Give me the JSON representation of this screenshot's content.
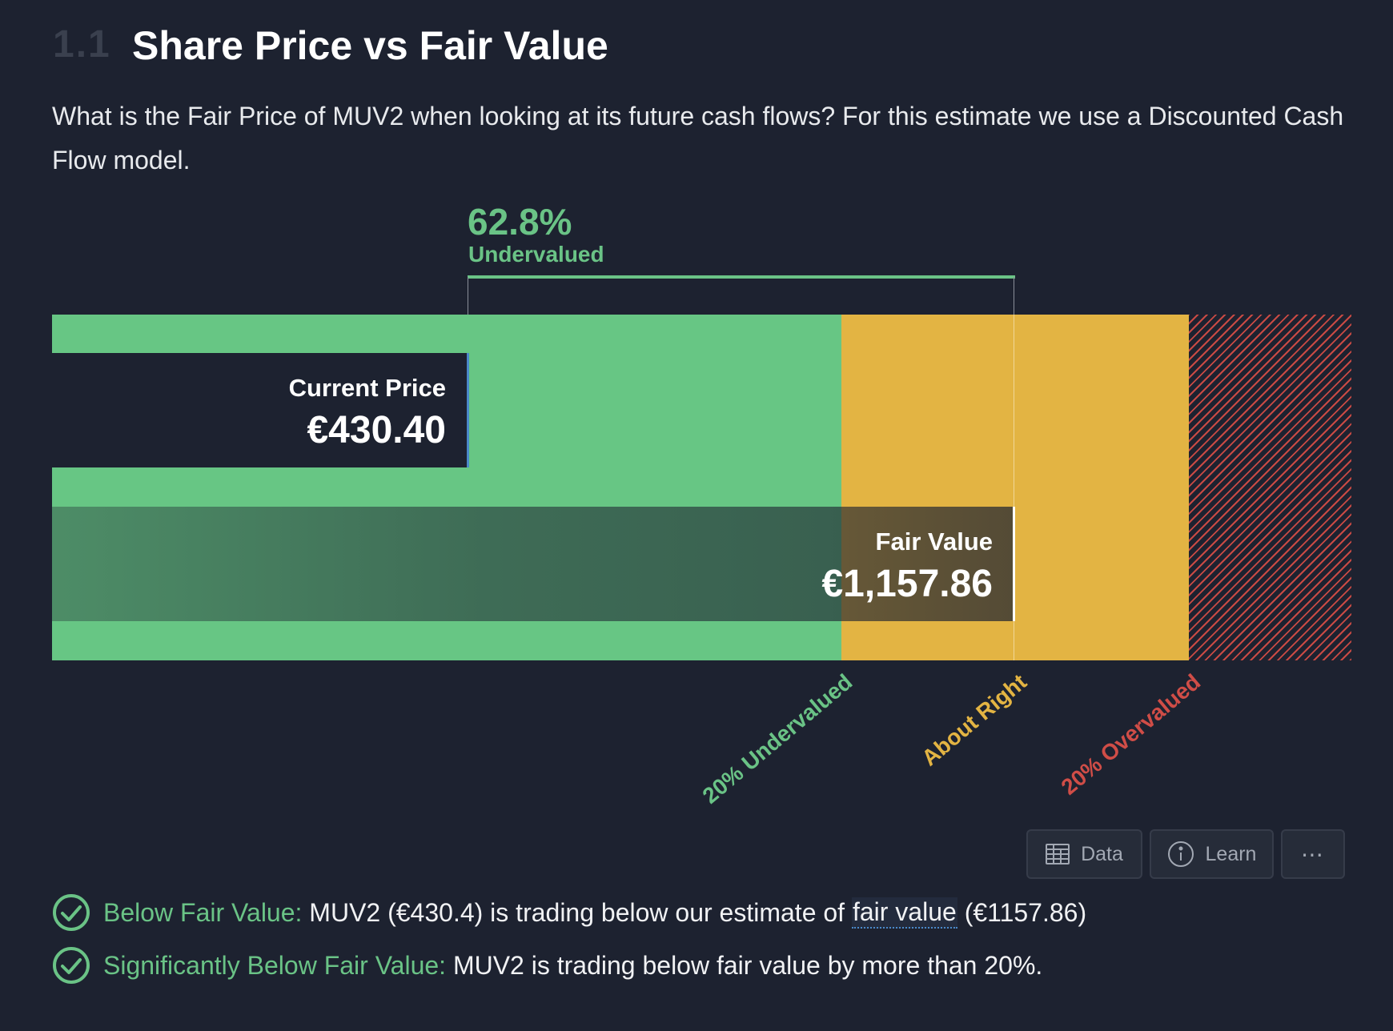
{
  "section": {
    "number": "1.1",
    "title": "Share Price vs Fair Value",
    "description": "What is the Fair Price of MUV2 when looking at its future cash flows? For this estimate we use a Discounted Cash Flow model."
  },
  "valuation": {
    "percent": "62.8%",
    "percent_label": "Undervalued",
    "current_price_label": "Current Price",
    "current_price_value": "€430.40",
    "fair_value_label": "Fair Value",
    "fair_value_value": "€1,157.86"
  },
  "chart_data": {
    "type": "bar",
    "current_price": 430.4,
    "fair_value": 1157.86,
    "undervalued_pct": 62.8,
    "zones": [
      {
        "label": "20% Undervalued",
        "color": "#67c684"
      },
      {
        "label": "About Right",
        "color": "#e3b443"
      },
      {
        "label": "20% Overvalued",
        "color": "#c94a44"
      }
    ]
  },
  "toolbar": {
    "data_label": "Data",
    "learn_label": "Learn",
    "more_label": "⋯"
  },
  "checks": [
    {
      "title": "Below Fair Value:",
      "text_before": " MUV2 (€430.4) is trading below our estimate of ",
      "link": "fair value",
      "text_after": " (€1157.86)"
    },
    {
      "title": "Significantly Below Fair Value:",
      "text": " MUV2 is trading below fair value by more than 20%."
    }
  ],
  "colors": {
    "background": "#1d2230",
    "green": "#6ac386",
    "yellow": "#e3b443",
    "red": "#d04d47",
    "accent_blue": "#4a88c9"
  },
  "icons": [
    "table-icon",
    "info-icon",
    "check-circle-icon"
  ]
}
